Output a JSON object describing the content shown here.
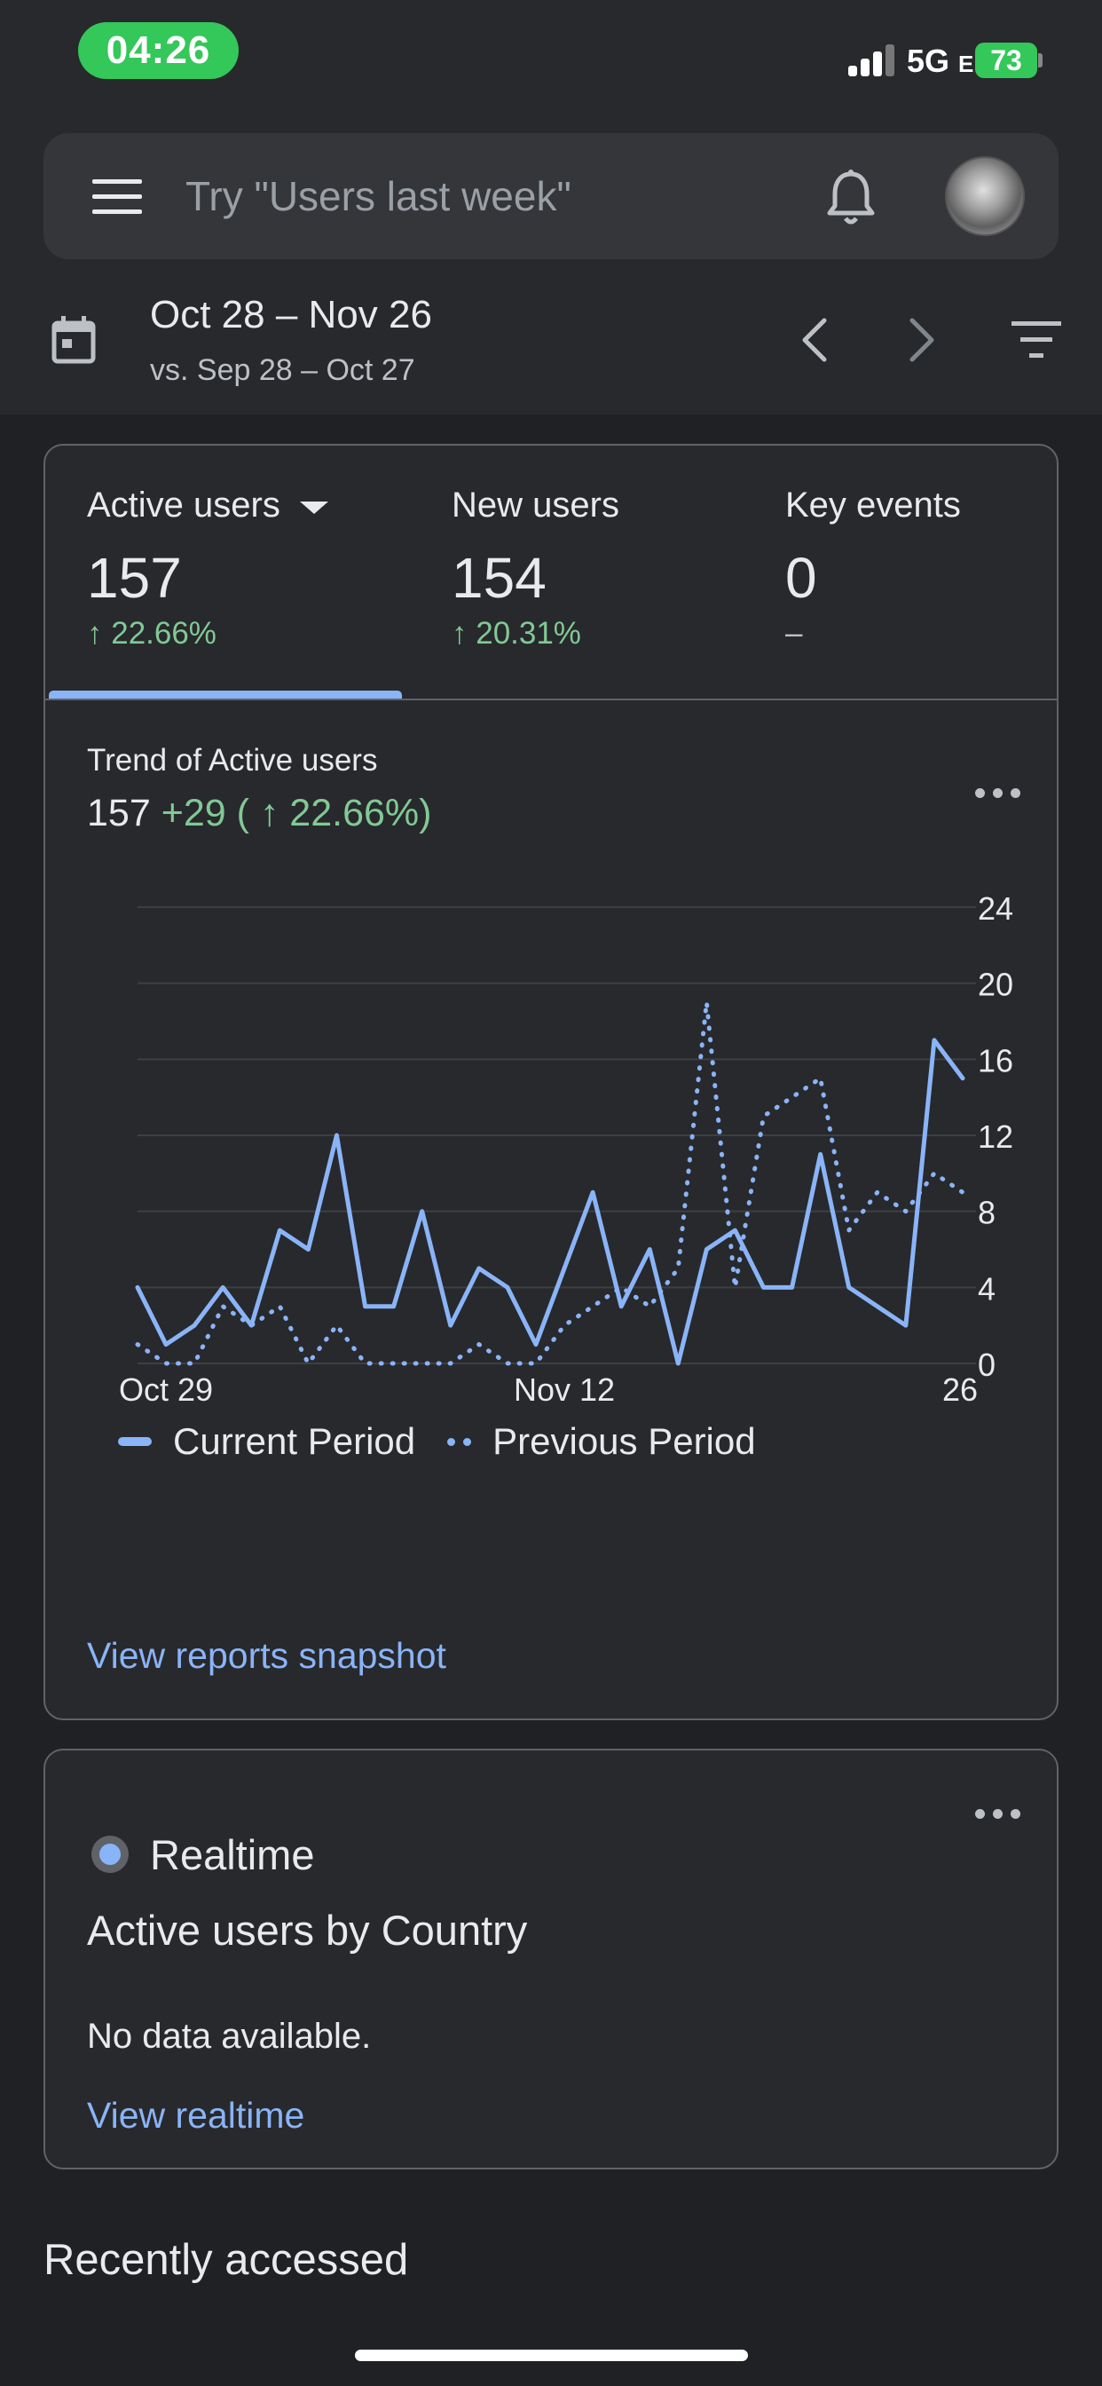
{
  "status_bar": {
    "time": "04:26",
    "network": "5G",
    "network_suffix": "E",
    "battery": "73"
  },
  "search": {
    "placeholder": "Try \"Users last week\""
  },
  "icons": {
    "menu": "hamburger-icon",
    "notifications": "bell-icon",
    "calendar": "calendar-icon",
    "prev": "chevron-left-icon",
    "next": "chevron-right-icon",
    "filter": "filter-icon"
  },
  "date_range": {
    "main": "Oct 28 – Nov 26",
    "compare": "vs. Sep 28 – Oct 27"
  },
  "metrics": [
    {
      "label": "Active users",
      "value": "157",
      "delta": "↑ 22.66%"
    },
    {
      "label": "New users",
      "value": "154",
      "delta": "↑ 20.31%"
    },
    {
      "label": "Key events",
      "value": "0",
      "delta": "–"
    }
  ],
  "trend": {
    "title": "Trend of Active users",
    "value": "157",
    "change": "+29 ( ↑ 22.66%)"
  },
  "chart_data": {
    "type": "line",
    "x_tick_labels": [
      "Oct 29",
      "Nov 12",
      "26"
    ],
    "ylim": [
      0,
      24
    ],
    "y_ticks": [
      0,
      4,
      8,
      12,
      16,
      20,
      24
    ],
    "series": [
      {
        "name": "Current Period",
        "style": "solid",
        "color": "#8ab4f8",
        "values": [
          4,
          1,
          2,
          4,
          2,
          7,
          6,
          12,
          3,
          3,
          8,
          2,
          5,
          4,
          1,
          5,
          9,
          3,
          6,
          0,
          6,
          7,
          4,
          4,
          11,
          4,
          3,
          2,
          17,
          15
        ]
      },
      {
        "name": "Previous Period",
        "style": "dotted",
        "color": "#8ab4f8",
        "values": [
          1,
          0,
          0,
          3,
          2,
          3,
          0,
          2,
          0,
          0,
          0,
          0,
          1,
          0,
          0,
          2,
          3,
          4,
          3,
          5,
          19,
          4,
          13,
          14,
          15,
          7,
          9,
          8,
          10,
          9
        ]
      }
    ]
  },
  "legend": {
    "current": "Current Period",
    "previous": "Previous Period"
  },
  "links": {
    "snapshot": "View reports snapshot",
    "realtime": "View realtime"
  },
  "realtime": {
    "title": "Realtime",
    "subtitle": "Active users by Country",
    "empty": "No data available."
  },
  "recently_accessed": "Recently accessed"
}
